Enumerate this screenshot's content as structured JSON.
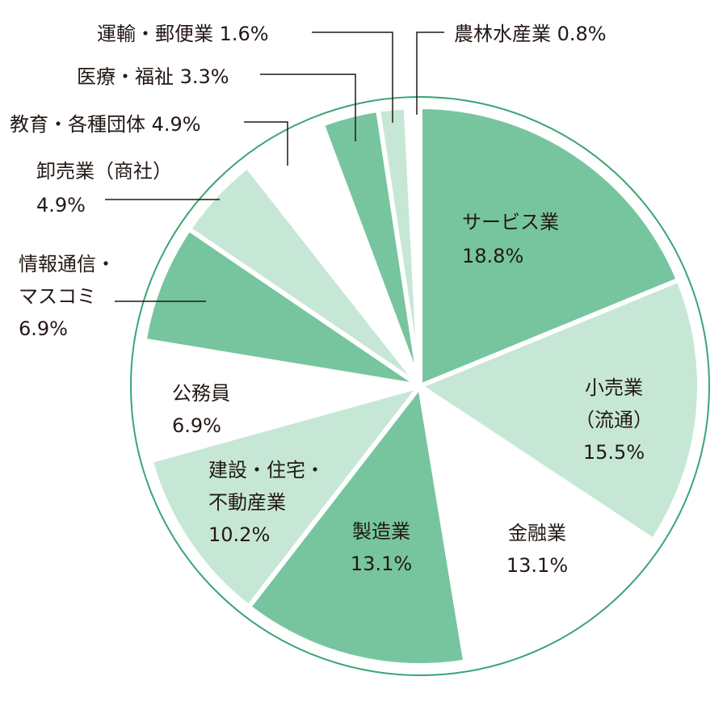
{
  "colors": {
    "dark": "#76c59f",
    "light": "#c6e7d6",
    "white": "#ffffff",
    "outline": "#3aa574",
    "leader": "#231815",
    "text": "#231815"
  },
  "chart_data": {
    "type": "pie",
    "start": "12 o'clock",
    "direction": "clockwise",
    "series": [
      {
        "category": "サービス業",
        "value": 18.8,
        "label_lines": [
          "サービス業",
          "18.8%"
        ],
        "fill": "dark"
      },
      {
        "category": "小売業（流通）",
        "value": 15.5,
        "label_lines": [
          "小売業",
          "（流通）",
          "15.5%"
        ],
        "fill": "light"
      },
      {
        "category": "金融業",
        "value": 13.1,
        "label_lines": [
          "金融業",
          "13.1%"
        ],
        "fill": "white"
      },
      {
        "category": "製造業",
        "value": 13.1,
        "label_lines": [
          "製造業",
          "13.1%"
        ],
        "fill": "dark"
      },
      {
        "category": "建設・住宅・不動産業",
        "value": 10.2,
        "label_lines": [
          "建設・住宅・",
          "不動産業",
          "10.2%"
        ],
        "fill": "light"
      },
      {
        "category": "公務員",
        "value": 6.9,
        "label_lines": [
          "公務員",
          "6.9%"
        ],
        "fill": "white"
      },
      {
        "category": "情報通信・マスコミ",
        "value": 6.9,
        "label_lines": [
          "情報通信・",
          "マスコミ",
          "6.9%"
        ],
        "fill": "dark"
      },
      {
        "category": "卸売業（商社）",
        "value": 4.9,
        "label_lines": [
          "卸売業（商社）",
          "4.9%"
        ],
        "fill": "light"
      },
      {
        "category": "教育・各種団体",
        "value": 4.9,
        "label_lines": [
          "教育・各種団体 4.9%"
        ],
        "fill": "white"
      },
      {
        "category": "医療・福祉",
        "value": 3.3,
        "label_lines": [
          "医療・福祉 3.3%"
        ],
        "fill": "dark"
      },
      {
        "category": "運輸・郵便業",
        "value": 1.6,
        "label_lines": [
          "運輸・郵便業 1.6%"
        ],
        "fill": "light"
      },
      {
        "category": "農林水産業",
        "value": 0.8,
        "label_lines": [
          "農林水産業 0.8%"
        ],
        "fill": "white"
      }
    ]
  }
}
